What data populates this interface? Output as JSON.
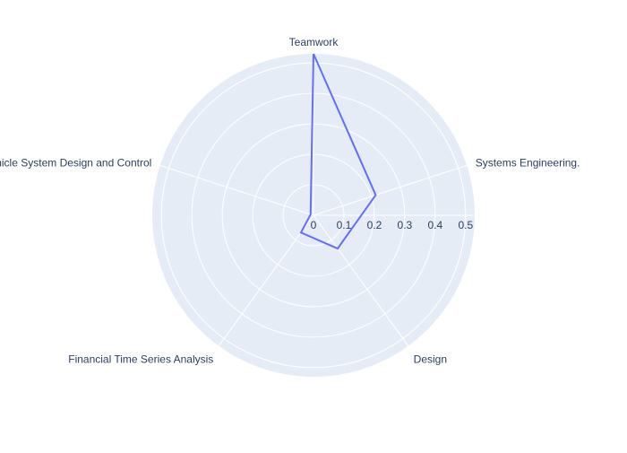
{
  "chart_data": {
    "type": "radar",
    "title": "",
    "categories": [
      "Teamwork",
      "Systems Engineering.",
      "Design",
      "Financial Time Series Analysis",
      "Vehicle System Design and Control"
    ],
    "series": [
      {
        "name": "",
        "values": [
          0.53,
          0.215,
          0.135,
          0.07,
          0.01
        ]
      }
    ],
    "radial_range": [
      0,
      0.53
    ],
    "radial_ticks": [
      0,
      0.1,
      0.2,
      0.3,
      0.4,
      0.5
    ],
    "grid": true,
    "colors": {
      "background": "#e5ecf6",
      "grid": "#ffffff",
      "series_line": "#636efa",
      "text": "#2a3f5f"
    }
  }
}
